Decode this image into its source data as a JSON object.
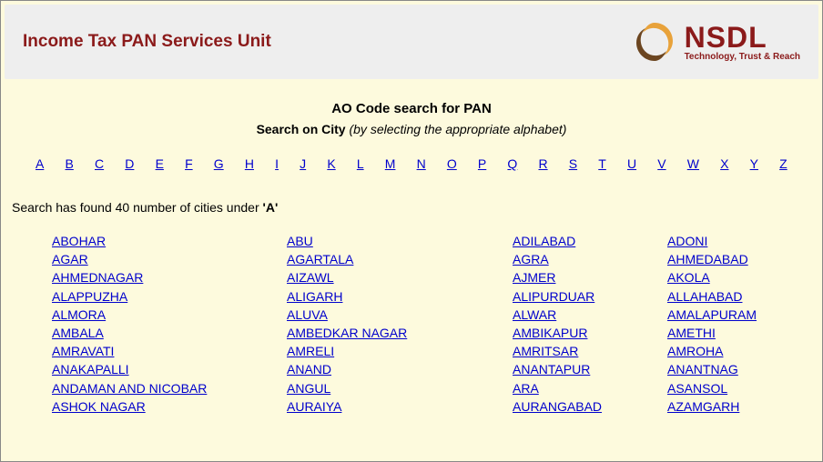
{
  "header": {
    "title": "Income Tax PAN Services Unit",
    "logo": {
      "name": "NSDL",
      "tagline": "Technology, Trust & Reach",
      "primary_color": "#8b1a1a",
      "swirl_orange": "#e8a23a",
      "swirl_dark": "#6b4520"
    }
  },
  "search": {
    "title": "AO Code search for PAN",
    "subtitle_bold": "Search on City",
    "subtitle_italic": "(by selecting the appropriate alphabet)"
  },
  "alphabet": [
    "A",
    "B",
    "C",
    "D",
    "E",
    "F",
    "G",
    "H",
    "I",
    "J",
    "K",
    "L",
    "M",
    "N",
    "O",
    "P",
    "Q",
    "R",
    "S",
    "T",
    "U",
    "V",
    "W",
    "X",
    "Y",
    "Z"
  ],
  "result": {
    "prefix": "Search has found 40 number of cities under ",
    "letter": "'A'"
  },
  "cities": [
    "ABOHAR",
    "ABU",
    "ADILABAD",
    "ADONI",
    "AGAR",
    "AGARTALA",
    "AGRA",
    "AHMEDABAD",
    "AHMEDNAGAR",
    "AIZAWL",
    "AJMER",
    "AKOLA",
    "ALAPPUZHA",
    "ALIGARH",
    "ALIPURDUAR",
    "ALLAHABAD",
    "ALMORA",
    "ALUVA",
    "ALWAR",
    "AMALAPURAM",
    "AMBALA",
    "AMBEDKAR NAGAR",
    "AMBIKAPUR",
    "AMETHI",
    "AMRAVATI",
    "AMRELI",
    "AMRITSAR",
    "AMROHA",
    "ANAKAPALLI",
    "ANAND",
    "ANANTAPUR",
    "ANANTNAG",
    "ANDAMAN AND NICOBAR",
    "ANGUL",
    "ARA",
    "ASANSOL",
    "ASHOK NAGAR",
    "AURAIYA",
    "AURANGABAD",
    "AZAMGARH"
  ]
}
